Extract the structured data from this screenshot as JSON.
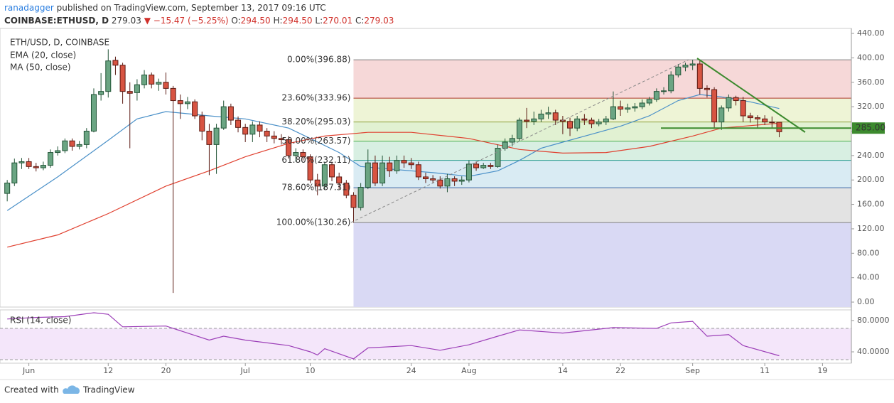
{
  "header": {
    "author": "ranadagger",
    "published": "published on TradingView.com, September 13, 2017 09:16 UTC",
    "symbol": "COINBASE:ETHUSD, D",
    "last": "279.03",
    "arrow": "▼",
    "change": "−15.47 (−5.25%)",
    "ohlc": [
      {
        "key": "O:",
        "value": "294.50"
      },
      {
        "key": "H:",
        "value": "294.50"
      },
      {
        "key": "L:",
        "value": "270.01"
      },
      {
        "key": "C:",
        "value": "279.03"
      }
    ]
  },
  "footer": {
    "created": "Created with",
    "brand": "TradingView"
  },
  "chart_data": {
    "type": "candlestick",
    "title": "ETH/USD, D, COINBASE",
    "up_color": "#6ba583",
    "up_edge": "#225437",
    "down_color": "#d75442",
    "down_edge": "#5b1a13",
    "xlim": [
      "2017-05-28",
      "2017-09-23"
    ],
    "xticks": [
      {
        "value": "2017-06-01",
        "label": "Jun"
      },
      {
        "value": "2017-06-12",
        "label": "12"
      },
      {
        "value": "2017-06-20",
        "label": "20"
      },
      {
        "value": "2017-07-01",
        "label": "Jul"
      },
      {
        "value": "2017-07-10",
        "label": "10"
      },
      {
        "value": "2017-07-24",
        "label": "24"
      },
      {
        "value": "2017-08-01",
        "label": "Aug"
      },
      {
        "value": "2017-08-14",
        "label": "14"
      },
      {
        "value": "2017-08-22",
        "label": "22"
      },
      {
        "value": "2017-09-01",
        "label": "Sep"
      },
      {
        "value": "2017-09-11",
        "label": "11"
      },
      {
        "value": "2017-09-19",
        "label": "19"
      }
    ],
    "ylim": [
      -8.1,
      448.2
    ],
    "yticks": [
      {
        "value": 0,
        "label": "0.00"
      },
      {
        "value": 40,
        "label": "40.00"
      },
      {
        "value": 80,
        "label": "80.00"
      },
      {
        "value": 120,
        "label": "120.00"
      },
      {
        "value": 160,
        "label": "160.00"
      },
      {
        "value": 200,
        "label": "200.00"
      },
      {
        "value": 240,
        "label": "240.00"
      },
      {
        "value": 280,
        "label": "280.00"
      },
      {
        "value": 320,
        "label": "320.00"
      },
      {
        "value": 360,
        "label": "360.00"
      },
      {
        "value": 400,
        "label": "400.00"
      },
      {
        "value": 440,
        "label": "440.00"
      }
    ],
    "x": [
      "2017-05-29",
      "2017-05-30",
      "2017-05-31",
      "2017-06-01",
      "2017-06-02",
      "2017-06-03",
      "2017-06-04",
      "2017-06-05",
      "2017-06-06",
      "2017-06-07",
      "2017-06-08",
      "2017-06-09",
      "2017-06-10",
      "2017-06-11",
      "2017-06-12",
      "2017-06-13",
      "2017-06-14",
      "2017-06-15",
      "2017-06-16",
      "2017-06-17",
      "2017-06-18",
      "2017-06-19",
      "2017-06-20",
      "2017-06-21",
      "2017-06-22",
      "2017-06-23",
      "2017-06-24",
      "2017-06-25",
      "2017-06-26",
      "2017-06-27",
      "2017-06-28",
      "2017-06-29",
      "2017-06-30",
      "2017-07-01",
      "2017-07-02",
      "2017-07-03",
      "2017-07-04",
      "2017-07-05",
      "2017-07-06",
      "2017-07-07",
      "2017-07-08",
      "2017-07-09",
      "2017-07-10",
      "2017-07-11",
      "2017-07-12",
      "2017-07-13",
      "2017-07-14",
      "2017-07-15",
      "2017-07-16",
      "2017-07-17",
      "2017-07-18",
      "2017-07-19",
      "2017-07-20",
      "2017-07-21",
      "2017-07-22",
      "2017-07-23",
      "2017-07-24",
      "2017-07-25",
      "2017-07-26",
      "2017-07-27",
      "2017-07-28",
      "2017-07-29",
      "2017-07-30",
      "2017-07-31",
      "2017-08-01",
      "2017-08-02",
      "2017-08-03",
      "2017-08-04",
      "2017-08-05",
      "2017-08-06",
      "2017-08-07",
      "2017-08-08",
      "2017-08-09",
      "2017-08-10",
      "2017-08-11",
      "2017-08-12",
      "2017-08-13",
      "2017-08-14",
      "2017-08-15",
      "2017-08-16",
      "2017-08-17",
      "2017-08-18",
      "2017-08-19",
      "2017-08-20",
      "2017-08-21",
      "2017-08-22",
      "2017-08-23",
      "2017-08-24",
      "2017-08-25",
      "2017-08-26",
      "2017-08-27",
      "2017-08-28",
      "2017-08-29",
      "2017-08-30",
      "2017-08-31",
      "2017-09-01",
      "2017-09-02",
      "2017-09-03",
      "2017-09-04",
      "2017-09-05",
      "2017-09-06",
      "2017-09-07",
      "2017-09-08",
      "2017-09-09",
      "2017-09-10",
      "2017-09-11",
      "2017-09-12",
      "2017-09-13"
    ],
    "ohlc": [
      [
        178,
        200,
        165,
        195
      ],
      [
        195,
        235,
        190,
        228
      ],
      [
        228,
        236,
        218,
        230
      ],
      [
        230,
        236,
        218,
        222
      ],
      [
        222,
        228,
        214,
        220
      ],
      [
        220,
        230,
        216,
        224
      ],
      [
        224,
        250,
        220,
        245
      ],
      [
        245,
        255,
        240,
        248
      ],
      [
        248,
        268,
        244,
        264
      ],
      [
        264,
        268,
        248,
        255
      ],
      [
        255,
        264,
        250,
        258
      ],
      [
        258,
        285,
        252,
        280
      ],
      [
        280,
        350,
        278,
        340
      ],
      [
        340,
        375,
        330,
        345
      ],
      [
        345,
        414,
        335,
        395
      ],
      [
        396,
        402,
        372,
        388
      ],
      [
        388,
        392,
        325,
        345
      ],
      [
        345,
        360,
        252,
        342
      ],
      [
        343,
        365,
        330,
        356
      ],
      [
        356,
        380,
        350,
        372
      ],
      [
        372,
        376,
        350,
        357
      ],
      [
        357,
        366,
        346,
        360
      ],
      [
        360,
        376,
        340,
        350
      ],
      [
        350,
        354,
        15,
        330
      ],
      [
        330,
        340,
        300,
        325
      ],
      [
        325,
        336,
        316,
        328
      ],
      [
        328,
        332,
        300,
        305
      ],
      [
        305,
        312,
        265,
        280
      ],
      [
        280,
        292,
        208,
        258
      ],
      [
        258,
        292,
        210,
        285
      ],
      [
        285,
        330,
        282,
        320
      ],
      [
        320,
        325,
        290,
        298
      ],
      [
        298,
        304,
        278,
        286
      ],
      [
        286,
        292,
        262,
        275
      ],
      [
        275,
        296,
        262,
        290
      ],
      [
        290,
        296,
        270,
        280
      ],
      [
        280,
        285,
        262,
        272
      ],
      [
        272,
        280,
        260,
        268
      ],
      [
        268,
        275,
        258,
        266
      ],
      [
        266,
        272,
        235,
        240
      ],
      [
        240,
        252,
        230,
        245
      ],
      [
        245,
        250,
        232,
        238
      ],
      [
        238,
        242,
        195,
        200
      ],
      [
        200,
        210,
        175,
        190
      ],
      [
        190,
        230,
        185,
        225
      ],
      [
        225,
        230,
        198,
        205
      ],
      [
        205,
        212,
        185,
        195
      ],
      [
        195,
        200,
        170,
        175
      ],
      [
        175,
        180,
        130.26,
        155
      ],
      [
        155,
        195,
        150,
        188
      ],
      [
        188,
        250,
        185,
        228
      ],
      [
        228,
        240,
        190,
        195
      ],
      [
        195,
        240,
        190,
        228
      ],
      [
        228,
        238,
        205,
        215
      ],
      [
        215,
        240,
        210,
        232
      ],
      [
        232,
        240,
        220,
        228
      ],
      [
        228,
        236,
        218,
        225
      ],
      [
        225,
        230,
        200,
        205
      ],
      [
        205,
        212,
        195,
        202
      ],
      [
        202,
        208,
        195,
        200
      ],
      [
        200,
        206,
        186,
        190
      ],
      [
        190,
        210,
        180,
        202
      ],
      [
        202,
        206,
        190,
        198
      ],
      [
        198,
        206,
        192,
        200
      ],
      [
        200,
        232,
        196,
        226
      ],
      [
        226,
        230,
        215,
        220
      ],
      [
        220,
        228,
        218,
        224
      ],
      [
        224,
        228,
        218,
        222
      ],
      [
        222,
        258,
        220,
        252
      ],
      [
        252,
        268,
        248,
        262
      ],
      [
        262,
        274,
        255,
        268
      ],
      [
        268,
        302,
        264,
        298
      ],
      [
        298,
        318,
        285,
        296
      ],
      [
        296,
        312,
        290,
        300
      ],
      [
        300,
        315,
        295,
        308
      ],
      [
        308,
        320,
        300,
        310
      ],
      [
        310,
        315,
        290,
        298
      ],
      [
        298,
        305,
        275,
        296
      ],
      [
        296,
        302,
        272,
        285
      ],
      [
        285,
        305,
        280,
        300
      ],
      [
        300,
        308,
        290,
        298
      ],
      [
        298,
        302,
        285,
        292
      ],
      [
        292,
        300,
        288,
        295
      ],
      [
        295,
        305,
        290,
        300
      ],
      [
        300,
        345,
        298,
        320
      ],
      [
        320,
        330,
        305,
        316
      ],
      [
        316,
        325,
        310,
        318
      ],
      [
        318,
        326,
        312,
        320
      ],
      [
        320,
        332,
        316,
        326
      ],
      [
        326,
        336,
        322,
        332
      ],
      [
        332,
        350,
        328,
        345
      ],
      [
        345,
        352,
        340,
        346
      ],
      [
        346,
        378,
        342,
        372
      ],
      [
        372,
        390,
        368,
        385
      ],
      [
        385,
        392,
        378,
        388
      ],
      [
        388,
        396.88,
        380,
        390
      ],
      [
        390,
        396,
        340,
        350
      ],
      [
        350,
        355,
        335,
        348
      ],
      [
        348,
        352,
        285,
        295
      ],
      [
        295,
        322,
        282,
        318
      ],
      [
        318,
        340,
        312,
        335
      ],
      [
        335,
        338,
        322,
        330
      ],
      [
        330,
        336,
        295,
        305
      ],
      [
        305,
        310,
        294,
        302
      ],
      [
        302,
        306,
        285,
        300
      ],
      [
        300,
        306,
        290,
        295
      ],
      [
        295,
        304,
        285,
        294.5
      ],
      [
        294.5,
        294.5,
        270.01,
        279.03
      ]
    ],
    "ema": {
      "name": "EMA (20, close)",
      "color": "#4a90c8",
      "x": [
        "2017-05-29",
        "2017-06-05",
        "2017-06-12",
        "2017-06-16",
        "2017-06-20",
        "2017-06-26",
        "2017-07-01",
        "2017-07-07",
        "2017-07-10",
        "2017-07-14",
        "2017-07-17",
        "2017-07-21",
        "2017-07-27",
        "2017-08-01",
        "2017-08-05",
        "2017-08-08",
        "2017-08-11",
        "2017-08-14",
        "2017-08-18",
        "2017-08-22",
        "2017-08-26",
        "2017-08-30",
        "2017-09-02",
        "2017-09-05",
        "2017-09-09",
        "2017-09-13"
      ],
      "values": [
        150,
        205,
        265,
        300,
        312,
        305,
        300,
        285,
        268,
        245,
        222,
        218,
        212,
        206,
        215,
        232,
        252,
        262,
        275,
        288,
        305,
        330,
        340,
        336,
        328,
        317
      ]
    },
    "ma": {
      "name": "MA (50, close)",
      "color": "#e0402f",
      "x": [
        "2017-05-29",
        "2017-06-05",
        "2017-06-12",
        "2017-06-20",
        "2017-06-26",
        "2017-07-01",
        "2017-07-07",
        "2017-07-12",
        "2017-07-18",
        "2017-07-24",
        "2017-08-01",
        "2017-08-08",
        "2017-08-14",
        "2017-08-20",
        "2017-08-26",
        "2017-09-01",
        "2017-09-05",
        "2017-09-13"
      ],
      "values": [
        90,
        110,
        145,
        190,
        215,
        238,
        260,
        272,
        278,
        278,
        268,
        250,
        244,
        245,
        255,
        272,
        285,
        293
      ]
    },
    "fib": {
      "start": "2017-07-16",
      "levels": [
        396.88,
        333.96,
        295.03,
        263.57,
        232.11,
        187.31,
        130.26
      ],
      "value_labels": [
        "0.00%(396.88)",
        "23.60%(333.96)",
        "38.20%(295.03)",
        "50.00%(263.57)",
        "61.80%(232.11)",
        "78.60%(187.31)",
        "100.00%(130.26)"
      ],
      "colors": [
        "#808080",
        "#b03a2e",
        "#8da13a",
        "#4caf50",
        "#2a9d8f",
        "#3d6aa8",
        "#808080"
      ],
      "fills": [
        "#f6d8d8",
        "#eef4d6",
        "#e1f1d2",
        "#d8efe2",
        "#d9ebf3",
        "#e3e3e3",
        "#d9d9f4"
      ]
    },
    "hline": {
      "value": 285,
      "label": "285.00",
      "color": "#3c8a2e"
    },
    "rsi": {
      "name": "RSI (14, close)",
      "color": "#9c3fb8",
      "ylim": [
        25.5,
        93.6
      ],
      "levels": [
        30,
        70
      ],
      "yticks": [
        {
          "value": 40,
          "label": "40.0000"
        },
        {
          "value": 80,
          "label": "80.0000"
        }
      ],
      "x": [
        "2017-05-29",
        "2017-06-02",
        "2017-06-06",
        "2017-06-10",
        "2017-06-12",
        "2017-06-14",
        "2017-06-20",
        "2017-06-26",
        "2017-06-28",
        "2017-07-01",
        "2017-07-07",
        "2017-07-10",
        "2017-07-11",
        "2017-07-12",
        "2017-07-16",
        "2017-07-18",
        "2017-07-24",
        "2017-07-28",
        "2017-08-01",
        "2017-08-05",
        "2017-08-08",
        "2017-08-14",
        "2017-08-21",
        "2017-08-27",
        "2017-08-29",
        "2017-09-01",
        "2017-09-03",
        "2017-09-06",
        "2017-09-08",
        "2017-09-13"
      ],
      "values": [
        82,
        84,
        85,
        90,
        88,
        72,
        73,
        55,
        60,
        55,
        48,
        40,
        36,
        44,
        31,
        45,
        48,
        42,
        49,
        60,
        68,
        64,
        71,
        70,
        77,
        79,
        60,
        62,
        48,
        35
      ]
    }
  }
}
